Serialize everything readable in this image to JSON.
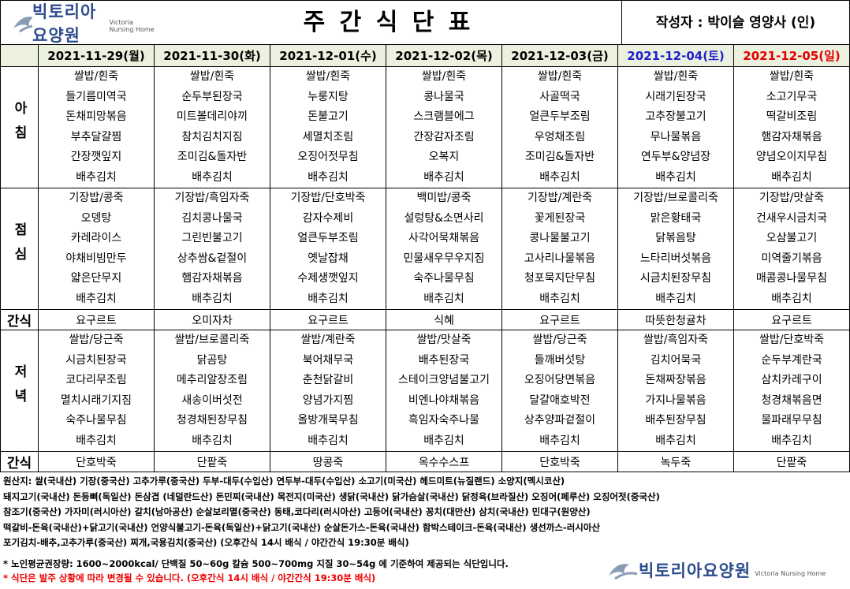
{
  "header": {
    "logo_name": "빅토리아요양원",
    "logo_sub": "Victoria Nursing Home",
    "title": "주 간 식 단 표",
    "author": "작성자 : 박이슬 영양사 (인)"
  },
  "days": [
    {
      "label": "2021-11-29(월)",
      "color": "#000000"
    },
    {
      "label": "2021-11-30(화)",
      "color": "#000000"
    },
    {
      "label": "2021-12-01(수)",
      "color": "#000000"
    },
    {
      "label": "2021-12-02(목)",
      "color": "#000000"
    },
    {
      "label": "2021-12-03(금)",
      "color": "#000000"
    },
    {
      "label": "2021-12-04(토)",
      "color": "#1f1fcc"
    },
    {
      "label": "2021-12-05(일)",
      "color": "#e00000"
    }
  ],
  "meals": [
    {
      "label": "아침",
      "menus": [
        [
          "쌀밥/흰죽",
          "들기름미역국",
          "돈채피망볶음",
          "부추달걀찜",
          "간장깻잎지",
          "배추김치"
        ],
        [
          "쌀밥/흰죽",
          "순두부된장국",
          "미트볼데리야끼",
          "참치김치지짐",
          "조미김&돌자반",
          "배추김치"
        ],
        [
          "쌀밥/흰죽",
          "누룽지탕",
          "돈불고기",
          "세멸치조림",
          "오징어젓무침",
          "배추김치"
        ],
        [
          "쌀밥/흰죽",
          "콩나물국",
          "스크램블에그",
          "간장감자조림",
          "오복지",
          "배추김치"
        ],
        [
          "쌀밥/흰죽",
          "사골떡국",
          "얼큰두부조림",
          "우엉채조림",
          "조미김&돌자반",
          "배추김치"
        ],
        [
          "쌀밥/흰죽",
          "시래기된장국",
          "고추장불고기",
          "무나물볶음",
          "연두부&양념장",
          "배추김치"
        ],
        [
          "쌀밥/흰죽",
          "소고기무국",
          "떡갈비조림",
          "햄감자채볶음",
          "양념오이지무침",
          "배추김치"
        ]
      ]
    },
    {
      "label": "점심",
      "menus": [
        [
          "기장밥/콩죽",
          "오뎅탕",
          "카레라이스",
          "야채비빔만두",
          "얇은단무지",
          "배추김치"
        ],
        [
          "기장밥/흑임자죽",
          "김치콩나물국",
          "그린빈불고기",
          "상추쌈&겉절이",
          "햄감자채볶음",
          "배추김치"
        ],
        [
          "기장밥/단호박죽",
          "감자수제비",
          "얼큰두부조림",
          "옛날잡채",
          "수제생깻잎지",
          "배추김치"
        ],
        [
          "백미밥/콩죽",
          "설렁탕&소면사리",
          "사각어묵채볶음",
          "민물새우무우지짐",
          "숙주나물무침",
          "배추김치"
        ],
        [
          "기장밥/계란죽",
          "꽃게된장국",
          "콩나물불고기",
          "고사리나물볶음",
          "청포묵지단무침",
          "배추김치"
        ],
        [
          "기장밥/브로콜리죽",
          "맑은황태국",
          "닭볶음탕",
          "느타리버섯볶음",
          "시금치된장무침",
          "배추김치"
        ],
        [
          "기장밥/맛살죽",
          "건새우시금치국",
          "오삼불고기",
          "미역줄기볶음",
          "매콤콩나물무침",
          "배추김치"
        ]
      ]
    },
    {
      "label": "간식",
      "menus": [
        "요구르트",
        "오미자차",
        "요구르트",
        "식혜",
        "요구르트",
        "따뜻한청귤차",
        "요구르트"
      ]
    },
    {
      "label": "저녁",
      "menus": [
        [
          "쌀밥/당근죽",
          "시금치된장국",
          "코다리무조림",
          "멸치시래기지짐",
          "숙주나물무침",
          "배추김치"
        ],
        [
          "쌀밥/브로콜리죽",
          "닭곰탕",
          "메추리알장조림",
          "새송이버섯전",
          "청경채된장무침",
          "배추김치"
        ],
        [
          "쌀밥/계란죽",
          "북어채무국",
          "춘천닭갈비",
          "양념가지찜",
          "올방개묵무침",
          "배추김치"
        ],
        [
          "쌀밥/맛살죽",
          "배추된장국",
          "스테이크양념불고기",
          "비엔나야채볶음",
          "흑임자숙주나물",
          "배추김치"
        ],
        [
          "쌀밥/당근죽",
          "들깨버섯탕",
          "오징어당면볶음",
          "달걀애호박전",
          "상추양파겉절이",
          "배추김치"
        ],
        [
          "쌀밥/흑임자죽",
          "김치어묵국",
          "돈채짜장볶음",
          "가지나물볶음",
          "배추된장무침",
          "배추김치"
        ],
        [
          "쌀밥/단호박죽",
          "순두부계란국",
          "삼치카레구이",
          "청경채볶음면",
          "물파래무무침",
          "배추김치"
        ]
      ]
    },
    {
      "label": "간식",
      "menus": [
        "단호박죽",
        "단팥죽",
        "땅콩죽",
        "옥수수스프",
        "단호박죽",
        "녹두죽",
        "단팥죽"
      ]
    }
  ],
  "origin": [
    "원산지: 쌀(국내산) 기장(중국산) 고추가루(중국산) 두부-대두(수입산) 연두부-대두(수입산) 소고기(미국산) 헤드미트(뉴질랜드) 소양지(멕시코산)",
    "돼지고기(국내산) 돈등뼈(독일산) 돈삼겹 (네덜란드산) 돈민찌(국내산) 목전지(미국산) 생닭(국내산) 닭가슴살(국내산) 닭정육(브라질산) 오징어(페루산) 오징어젓(중국산)",
    "참조기(중국산) 가자미(러시아산) 갈치(남아공산) 순살보리멸(중국산) 동태,코다리(러시아산) 고등어(국내산) 꽁치(대만산) 삼치(국내산) 민대구(원양산)",
    "떡갈비-돈육(국내산)+닭고기(국내산) 언양식불고기-돈육(독일산)+닭고기(국내산) 순살돈가스-돈육(국내산) 함박스테이크-돈육(국내산) 생선까스-러시아산",
    "포기김치-배추,고추가루(중국산)  찌개,국용김치(중국산)    (오후간식 14시 배식 / 야간간식 19:30분 배식)"
  ],
  "notes": [
    "* 노인평균권장량: 1600~2000kcal/ 단백질 50~60g 칼슘 500~700mg 지질 30~54g 에 기준하여 제공되는 식단입니다.",
    "* 식단은 발주 상황에 따라 변경될 수 있습니다. (오후간식 14시 배식 / 야간간식 19:30분 배식)"
  ]
}
